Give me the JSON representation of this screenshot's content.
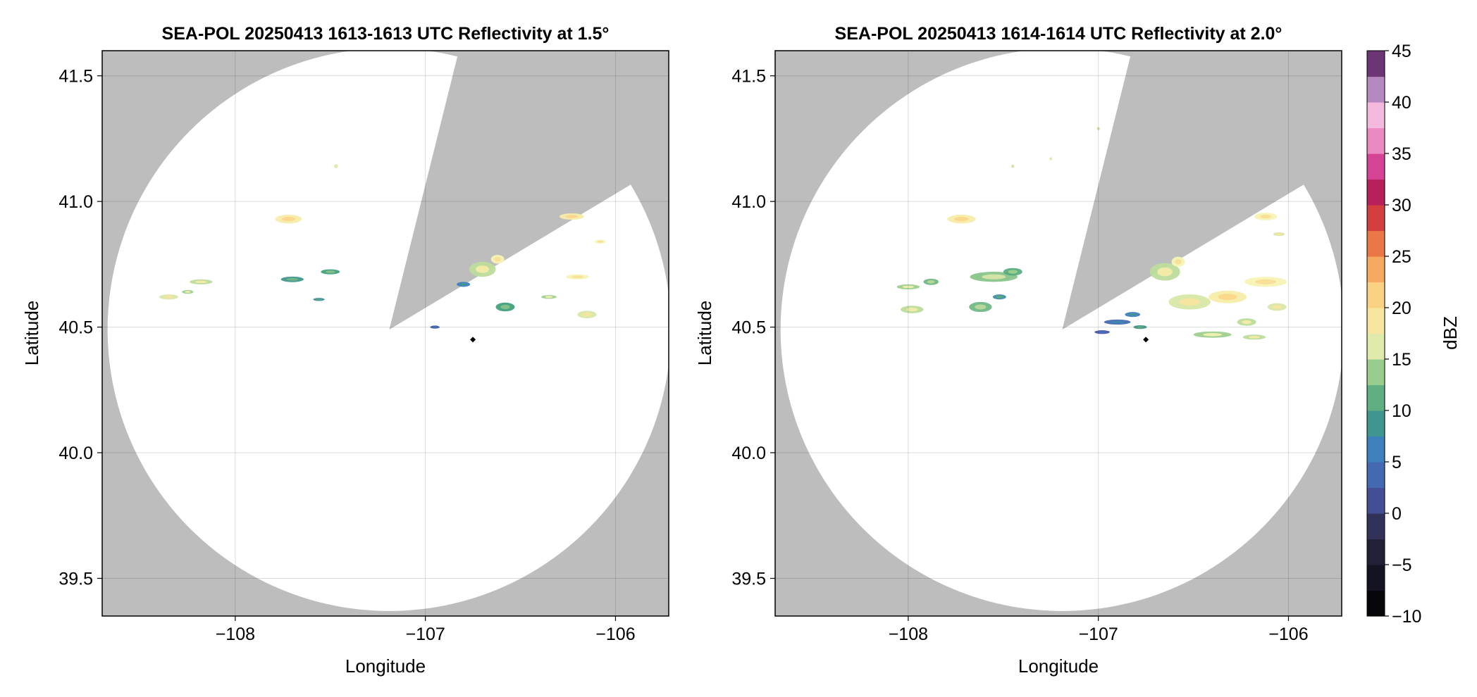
{
  "chart_data": [
    {
      "type": "heatmap",
      "title": "SEA-POL 20250413 1613-1613 UTC Reflectivity at 1.5°",
      "xlabel": "Longitude",
      "ylabel": "Latitude",
      "xlim": [
        -108.7,
        -105.72
      ],
      "ylim": [
        39.35,
        41.6
      ],
      "xticks": [
        -108,
        -107,
        -106
      ],
      "xtick_labels": [
        "−108",
        "−107",
        "−106"
      ],
      "yticks": [
        39.5,
        40.0,
        40.5,
        41.0,
        41.5
      ],
      "ytick_labels": [
        "39.5",
        "40.0",
        "40.5",
        "41.0",
        "41.5"
      ],
      "grid": true,
      "background_color": "#bdbdbd",
      "coverage_color": "#ffffff",
      "radar": {
        "lon": -107.19,
        "lat": 40.49,
        "range_deg_lat": 1.12,
        "blocked_sector_deg": [
          14,
          59
        ]
      },
      "site_marker": {
        "lon": -106.75,
        "lat": 40.45
      },
      "echoes": [
        {
          "lon": -107.72,
          "lat": 40.93,
          "w": 0.14,
          "h": 0.035,
          "dbz": 18
        },
        {
          "lon": -107.5,
          "lat": 40.72,
          "w": 0.1,
          "h": 0.02,
          "dbz": 10
        },
        {
          "lon": -107.7,
          "lat": 40.69,
          "w": 0.12,
          "h": 0.022,
          "dbz": 9
        },
        {
          "lon": -108.18,
          "lat": 40.68,
          "w": 0.12,
          "h": 0.02,
          "dbz": 15
        },
        {
          "lon": -108.35,
          "lat": 40.62,
          "w": 0.1,
          "h": 0.02,
          "dbz": 16
        },
        {
          "lon": -108.25,
          "lat": 40.64,
          "w": 0.06,
          "h": 0.015,
          "dbz": 14
        },
        {
          "lon": -107.56,
          "lat": 40.61,
          "w": 0.06,
          "h": 0.012,
          "dbz": 8
        },
        {
          "lon": -107.47,
          "lat": 41.14,
          "w": 0.02,
          "h": 0.015,
          "dbz": 16
        },
        {
          "lon": -106.7,
          "lat": 40.73,
          "w": 0.14,
          "h": 0.06,
          "dbz": 15
        },
        {
          "lon": -106.62,
          "lat": 40.77,
          "w": 0.07,
          "h": 0.035,
          "dbz": 17
        },
        {
          "lon": -106.8,
          "lat": 40.67,
          "w": 0.07,
          "h": 0.02,
          "dbz": 6
        },
        {
          "lon": -106.58,
          "lat": 40.58,
          "w": 0.1,
          "h": 0.035,
          "dbz": 10
        },
        {
          "lon": -106.35,
          "lat": 40.62,
          "w": 0.08,
          "h": 0.015,
          "dbz": 14
        },
        {
          "lon": -106.2,
          "lat": 40.7,
          "w": 0.12,
          "h": 0.02,
          "dbz": 17
        },
        {
          "lon": -106.15,
          "lat": 40.55,
          "w": 0.1,
          "h": 0.03,
          "dbz": 16
        },
        {
          "lon": -106.23,
          "lat": 40.94,
          "w": 0.13,
          "h": 0.025,
          "dbz": 18
        },
        {
          "lon": -106.08,
          "lat": 40.84,
          "w": 0.06,
          "h": 0.015,
          "dbz": 17
        },
        {
          "lon": -106.95,
          "lat": 40.5,
          "w": 0.05,
          "h": 0.012,
          "dbz": 3
        }
      ]
    },
    {
      "type": "heatmap",
      "title": "SEA-POL 20250413 1614-1614 UTC Reflectivity at 2.0°",
      "xlabel": "Longitude",
      "ylabel": "Latitude",
      "xlim": [
        -108.7,
        -105.72
      ],
      "ylim": [
        39.35,
        41.6
      ],
      "xticks": [
        -108,
        -107,
        -106
      ],
      "xtick_labels": [
        "−108",
        "−107",
        "−106"
      ],
      "yticks": [
        39.5,
        40.0,
        40.5,
        41.0,
        41.5
      ],
      "ytick_labels": [
        "39.5",
        "40.0",
        "40.5",
        "41.0",
        "41.5"
      ],
      "grid": true,
      "background_color": "#bdbdbd",
      "coverage_color": "#ffffff",
      "radar": {
        "lon": -107.19,
        "lat": 40.49,
        "range_deg_lat": 1.12,
        "blocked_sector_deg": [
          14,
          59
        ]
      },
      "site_marker": {
        "lon": -106.75,
        "lat": 40.45
      },
      "echoes": [
        {
          "lon": -107.72,
          "lat": 40.93,
          "w": 0.15,
          "h": 0.035,
          "dbz": 18
        },
        {
          "lon": -107.55,
          "lat": 40.7,
          "w": 0.25,
          "h": 0.04,
          "dbz": 13
        },
        {
          "lon": -107.45,
          "lat": 40.72,
          "w": 0.1,
          "h": 0.03,
          "dbz": 11
        },
        {
          "lon": -107.88,
          "lat": 40.68,
          "w": 0.08,
          "h": 0.025,
          "dbz": 12
        },
        {
          "lon": -108.0,
          "lat": 40.66,
          "w": 0.12,
          "h": 0.02,
          "dbz": 14
        },
        {
          "lon": -107.98,
          "lat": 40.57,
          "w": 0.12,
          "h": 0.03,
          "dbz": 15
        },
        {
          "lon": -107.62,
          "lat": 40.58,
          "w": 0.12,
          "h": 0.04,
          "dbz": 12
        },
        {
          "lon": -107.52,
          "lat": 40.62,
          "w": 0.07,
          "h": 0.02,
          "dbz": 8
        },
        {
          "lon": -106.65,
          "lat": 40.72,
          "w": 0.16,
          "h": 0.07,
          "dbz": 15
        },
        {
          "lon": -106.58,
          "lat": 40.76,
          "w": 0.07,
          "h": 0.04,
          "dbz": 17
        },
        {
          "lon": -106.52,
          "lat": 40.6,
          "w": 0.22,
          "h": 0.06,
          "dbz": 16
        },
        {
          "lon": -106.32,
          "lat": 40.62,
          "w": 0.2,
          "h": 0.05,
          "dbz": 18
        },
        {
          "lon": -106.12,
          "lat": 40.68,
          "w": 0.22,
          "h": 0.04,
          "dbz": 17
        },
        {
          "lon": -106.06,
          "lat": 40.58,
          "w": 0.1,
          "h": 0.03,
          "dbz": 16
        },
        {
          "lon": -106.22,
          "lat": 40.52,
          "w": 0.1,
          "h": 0.03,
          "dbz": 15
        },
        {
          "lon": -106.4,
          "lat": 40.47,
          "w": 0.2,
          "h": 0.025,
          "dbz": 14
        },
        {
          "lon": -106.18,
          "lat": 40.46,
          "w": 0.12,
          "h": 0.02,
          "dbz": 15
        },
        {
          "lon": -106.82,
          "lat": 40.55,
          "w": 0.08,
          "h": 0.02,
          "dbz": 6
        },
        {
          "lon": -106.9,
          "lat": 40.52,
          "w": 0.14,
          "h": 0.02,
          "dbz": 4
        },
        {
          "lon": -106.98,
          "lat": 40.48,
          "w": 0.08,
          "h": 0.015,
          "dbz": 2
        },
        {
          "lon": -106.78,
          "lat": 40.5,
          "w": 0.07,
          "h": 0.015,
          "dbz": 9
        },
        {
          "lon": -106.12,
          "lat": 40.94,
          "w": 0.12,
          "h": 0.03,
          "dbz": 17
        },
        {
          "lon": -106.05,
          "lat": 40.87,
          "w": 0.06,
          "h": 0.015,
          "dbz": 16
        },
        {
          "lon": -107.0,
          "lat": 41.29,
          "w": 0.015,
          "h": 0.012,
          "dbz": 15
        },
        {
          "lon": -107.25,
          "lat": 41.17,
          "w": 0.015,
          "h": 0.012,
          "dbz": 16
        },
        {
          "lon": -107.45,
          "lat": 41.14,
          "w": 0.015,
          "h": 0.012,
          "dbz": 15
        }
      ]
    }
  ],
  "colorbar": {
    "label": "dBZ",
    "min": -10,
    "max": 45,
    "ticks": [
      -10,
      -5,
      0,
      5,
      10,
      15,
      20,
      25,
      30,
      35,
      40,
      45
    ],
    "tick_labels": [
      "−10",
      "−5",
      "0",
      "5",
      "10",
      "15",
      "20",
      "25",
      "30",
      "35",
      "40",
      "45"
    ],
    "color_stops": [
      {
        "v": -10,
        "c": "#000000"
      },
      {
        "v": -2,
        "c": "#2b2947"
      },
      {
        "v": 2,
        "c": "#4a56a6"
      },
      {
        "v": 6,
        "c": "#3d7ec0"
      },
      {
        "v": 10,
        "c": "#42a07c"
      },
      {
        "v": 14,
        "c": "#9fd08f"
      },
      {
        "v": 17,
        "c": "#f5f3b3"
      },
      {
        "v": 21,
        "c": "#fbd588"
      },
      {
        "v": 25,
        "c": "#f4964e"
      },
      {
        "v": 28,
        "c": "#dd4b38"
      },
      {
        "v": 31,
        "c": "#b31c55"
      },
      {
        "v": 34,
        "c": "#d8479a"
      },
      {
        "v": 37,
        "c": "#f19fd0"
      },
      {
        "v": 39.5,
        "c": "#f4c5e3"
      },
      {
        "v": 42,
        "c": "#9a6fb0"
      },
      {
        "v": 45,
        "c": "#4a0b4d"
      }
    ]
  }
}
